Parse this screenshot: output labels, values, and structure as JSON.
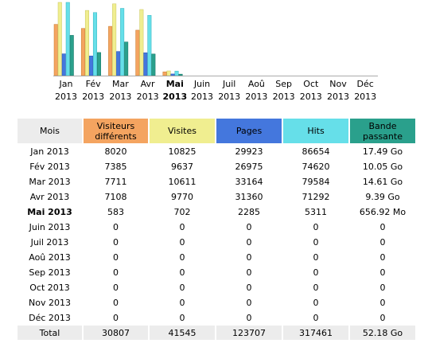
{
  "colors": {
    "visitors": "#f4a460",
    "visits": "#f0ee90",
    "pages": "#4477dd",
    "hits": "#66dfe9",
    "bandwidth": "#2aa08c",
    "header_month": "#ececec",
    "total_row": "#ececec"
  },
  "chart_data": {
    "type": "bar",
    "categories": [
      "Jan 2013",
      "Fév 2013",
      "Mar 2013",
      "Avr 2013",
      "Mai 2013",
      "Juin 2013",
      "Juil 2013",
      "Aoû 2013",
      "Sep 2013",
      "Oct 2013",
      "Nov 2013",
      "Déc 2013"
    ],
    "series": [
      {
        "name": "Visiteurs différents",
        "values": [
          8020,
          7385,
          7711,
          7108,
          583,
          0,
          0,
          0,
          0,
          0,
          0,
          0
        ]
      },
      {
        "name": "Visites",
        "values": [
          10825,
          9637,
          10611,
          9770,
          702,
          0,
          0,
          0,
          0,
          0,
          0,
          0
        ]
      },
      {
        "name": "Pages",
        "values": [
          29923,
          26975,
          33164,
          31360,
          2285,
          0,
          0,
          0,
          0,
          0,
          0,
          0
        ]
      },
      {
        "name": "Hits",
        "values": [
          86654,
          74620,
          79584,
          71292,
          5311,
          0,
          0,
          0,
          0,
          0,
          0,
          0
        ]
      },
      {
        "name": "Bande passante",
        "values": [
          17.49,
          10.05,
          14.61,
          9.39,
          0.64,
          0,
          0,
          0,
          0,
          0,
          0,
          0
        ]
      }
    ]
  },
  "months": [
    {
      "m": "Jan",
      "y": "2013"
    },
    {
      "m": "Fév",
      "y": "2013"
    },
    {
      "m": "Mar",
      "y": "2013"
    },
    {
      "m": "Avr",
      "y": "2013"
    },
    {
      "m": "Mai",
      "y": "2013",
      "current": true
    },
    {
      "m": "Juin",
      "y": "2013"
    },
    {
      "m": "Juil",
      "y": "2013"
    },
    {
      "m": "Aoû",
      "y": "2013"
    },
    {
      "m": "Sep",
      "y": "2013"
    },
    {
      "m": "Oct",
      "y": "2013"
    },
    {
      "m": "Nov",
      "y": "2013"
    },
    {
      "m": "Déc",
      "y": "2013"
    }
  ],
  "table": {
    "headers": {
      "month": "Mois",
      "visitors": [
        "Visiteurs",
        "différents"
      ],
      "visits": "Visites",
      "pages": "Pages",
      "hits": "Hits",
      "bandwidth": [
        "Bande",
        "passante"
      ]
    },
    "rows": [
      [
        "Jan 2013",
        "8020",
        "10825",
        "29923",
        "86654",
        "17.49 Go"
      ],
      [
        "Fév 2013",
        "7385",
        "9637",
        "26975",
        "74620",
        "10.05 Go"
      ],
      [
        "Mar 2013",
        "7711",
        "10611",
        "33164",
        "79584",
        "14.61 Go"
      ],
      [
        "Avr 2013",
        "7108",
        "9770",
        "31360",
        "71292",
        "9.39 Go"
      ],
      [
        "Mai 2013",
        "583",
        "702",
        "2285",
        "5311",
        "656.92 Mo"
      ],
      [
        "Juin 2013",
        "0",
        "0",
        "0",
        "0",
        "0"
      ],
      [
        "Juil 2013",
        "0",
        "0",
        "0",
        "0",
        "0"
      ],
      [
        "Aoû 2013",
        "0",
        "0",
        "0",
        "0",
        "0"
      ],
      [
        "Sep 2013",
        "0",
        "0",
        "0",
        "0",
        "0"
      ],
      [
        "Oct 2013",
        "0",
        "0",
        "0",
        "0",
        "0"
      ],
      [
        "Nov 2013",
        "0",
        "0",
        "0",
        "0",
        "0"
      ],
      [
        "Déc 2013",
        "0",
        "0",
        "0",
        "0",
        "0"
      ]
    ],
    "total": [
      "Total",
      "30807",
      "41545",
      "123707",
      "317461",
      "52.18 Go"
    ],
    "current_row": 4
  }
}
